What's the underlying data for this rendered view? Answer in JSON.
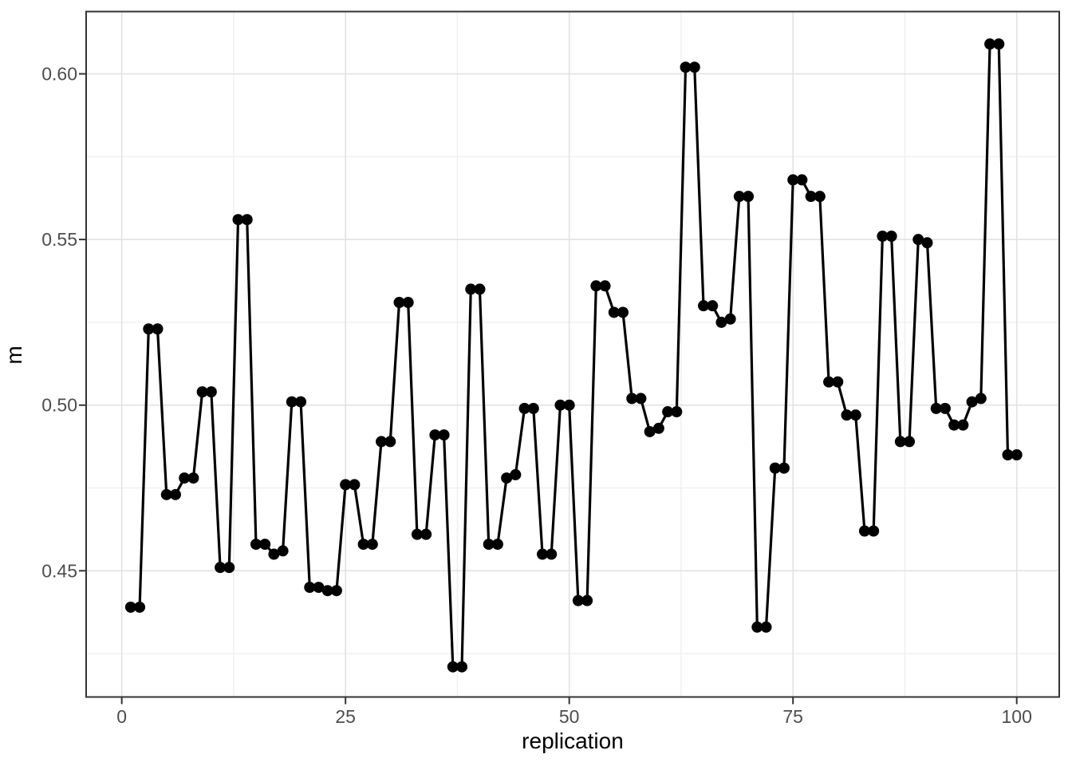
{
  "figure": {
    "background": "#ffffff"
  },
  "chart_data": {
    "type": "line",
    "title": "",
    "xlabel": "replication",
    "ylabel": "m",
    "legend": "none",
    "grid": "major+minor",
    "marker": "filled-circle",
    "xlim": [
      -3.98,
      104.75
    ],
    "ylim": [
      0.4119,
      0.6188
    ],
    "x_ticks": {
      "values": [
        0,
        25,
        50,
        75,
        100
      ],
      "labels": [
        "0",
        "25",
        "50",
        "75",
        "100"
      ]
    },
    "y_ticks": {
      "values": [
        0.45,
        0.5,
        0.55,
        0.6
      ],
      "labels": [
        "0.45",
        "0.50",
        "0.55",
        "0.60"
      ]
    },
    "x_minor": [
      12.5,
      37.5,
      62.5,
      87.5
    ],
    "y_minor": [
      0.425,
      0.475,
      0.525,
      0.575
    ],
    "series": [
      {
        "name": "m",
        "color": "#000000",
        "x": [
          1,
          2,
          3,
          4,
          5,
          6,
          7,
          8,
          9,
          10,
          11,
          12,
          13,
          14,
          15,
          16,
          17,
          18,
          19,
          20,
          21,
          22,
          23,
          24,
          25,
          26,
          27,
          28,
          29,
          30,
          31,
          32,
          33,
          34,
          35,
          36,
          37,
          38,
          39,
          40,
          41,
          42,
          43,
          44,
          45,
          46,
          47,
          48,
          49,
          50,
          51,
          52,
          53,
          54,
          55,
          56,
          57,
          58,
          59,
          60,
          61,
          62,
          63,
          64,
          65,
          66,
          67,
          68,
          69,
          70,
          71,
          72,
          73,
          74,
          75,
          76,
          77,
          78,
          79,
          80,
          81,
          82,
          83,
          84,
          85,
          86,
          87,
          88,
          89,
          90,
          91,
          92,
          93,
          94,
          95,
          96,
          97,
          98,
          99,
          100
        ],
        "y": [
          0.439,
          0.439,
          0.523,
          0.523,
          0.473,
          0.473,
          0.478,
          0.478,
          0.504,
          0.504,
          0.451,
          0.451,
          0.556,
          0.556,
          0.458,
          0.458,
          0.455,
          0.456,
          0.501,
          0.501,
          0.445,
          0.445,
          0.444,
          0.444,
          0.476,
          0.476,
          0.458,
          0.458,
          0.489,
          0.489,
          0.531,
          0.531,
          0.461,
          0.461,
          0.491,
          0.491,
          0.421,
          0.421,
          0.535,
          0.535,
          0.458,
          0.458,
          0.478,
          0.479,
          0.499,
          0.499,
          0.455,
          0.455,
          0.5,
          0.5,
          0.441,
          0.441,
          0.536,
          0.536,
          0.528,
          0.528,
          0.502,
          0.502,
          0.492,
          0.493,
          0.498,
          0.498,
          0.602,
          0.602,
          0.53,
          0.53,
          0.525,
          0.526,
          0.563,
          0.563,
          0.433,
          0.433,
          0.481,
          0.481,
          0.568,
          0.568,
          0.563,
          0.563,
          0.507,
          0.507,
          0.497,
          0.497,
          0.462,
          0.462,
          0.551,
          0.551,
          0.489,
          0.489,
          0.55,
          0.549,
          0.499,
          0.499,
          0.494,
          0.494,
          0.501,
          0.502,
          0.609,
          0.609,
          0.485,
          0.485
        ]
      }
    ],
    "theme": {
      "background": "#ffffff",
      "panel_background": "#ffffff",
      "panel_border": "#333333",
      "grid_major": "#e2e2e2",
      "grid_minor": "#f0f0f0",
      "tick_color": "#333333",
      "tick_label_color": "#4d4d4d",
      "axis_title_color": "#000000",
      "line_color": "#000000",
      "point_color": "#000000"
    }
  }
}
